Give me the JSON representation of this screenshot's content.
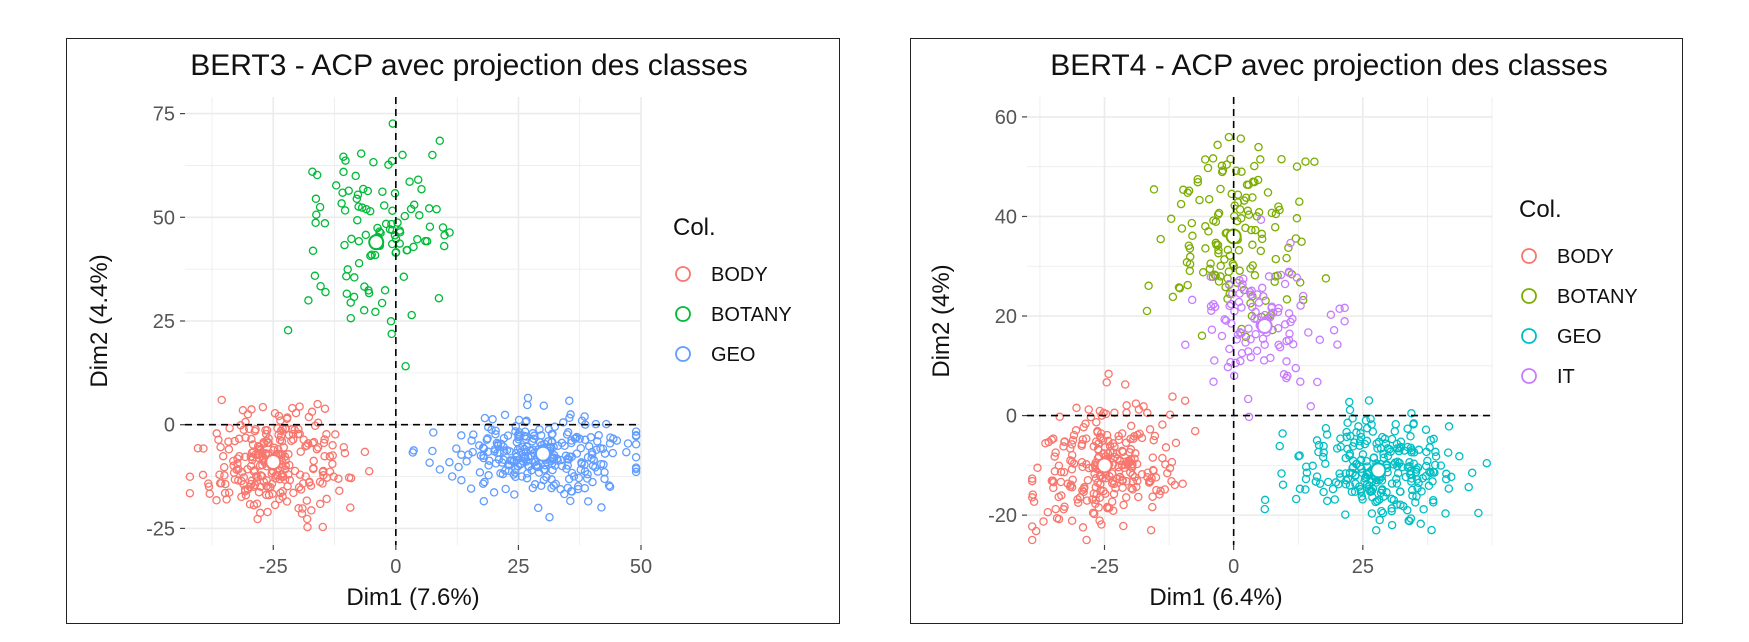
{
  "chart_data": [
    {
      "type": "scatter",
      "title": "BERT3 - ACP avec projection des classes",
      "xlabel": "Dim1 (7.6%)",
      "ylabel": "Dim2 (4.4%)",
      "xlim": [
        -43,
        50
      ],
      "ylim": [
        -29,
        79
      ],
      "xticks": [
        -25,
        0,
        25,
        50
      ],
      "yticks": [
        -25,
        0,
        25,
        50,
        75
      ],
      "grid": true,
      "reference_lines": {
        "x": 0,
        "y": 0,
        "style": "dashed"
      },
      "legend": {
        "title": "Col.",
        "position": "right"
      },
      "series": [
        {
          "name": "BODY",
          "color": "#F8766D",
          "centroid": [
            -25,
            -9
          ],
          "n": 260,
          "sx": 7,
          "sy": 6,
          "rot": 0.4
        },
        {
          "name": "BOTANY",
          "color": "#00BA38",
          "centroid": [
            -4,
            44
          ],
          "n": 110,
          "sx": 7,
          "sy": 11,
          "rot": 0
        },
        {
          "name": "GEO",
          "color": "#619CFF",
          "centroid": [
            30,
            -7
          ],
          "n": 280,
          "sx": 9,
          "sy": 5,
          "rot": 0
        }
      ]
    },
    {
      "type": "scatter",
      "title": "BERT4 - ACP avec projection des classes",
      "xlabel": "Dim1 (6.4%)",
      "ylabel": "Dim2 (4%)",
      "xlim": [
        -40,
        50
      ],
      "ylim": [
        -26,
        64
      ],
      "xticks": [
        -25,
        0,
        25
      ],
      "yticks": [
        -20,
        0,
        20,
        40,
        60
      ],
      "grid": true,
      "reference_lines": {
        "x": 0,
        "y": 0,
        "style": "dashed"
      },
      "legend": {
        "title": "Col.",
        "position": "right"
      },
      "series": [
        {
          "name": "BODY",
          "color": "#F8766D",
          "centroid": [
            -25,
            -10
          ],
          "n": 260,
          "sx": 7,
          "sy": 6,
          "rot": 0.45
        },
        {
          "name": "BOTANY",
          "color": "#7CAE00",
          "centroid": [
            0,
            36
          ],
          "n": 150,
          "sx": 7,
          "sy": 9,
          "rot": 0
        },
        {
          "name": "GEO",
          "color": "#00BFC4",
          "centroid": [
            28,
            -11
          ],
          "n": 260,
          "sx": 8,
          "sy": 5,
          "rot": -0.2
        },
        {
          "name": "IT",
          "color": "#C77CFF",
          "centroid": [
            6,
            18
          ],
          "n": 110,
          "sx": 6,
          "sy": 7,
          "rot": 0
        }
      ]
    }
  ]
}
